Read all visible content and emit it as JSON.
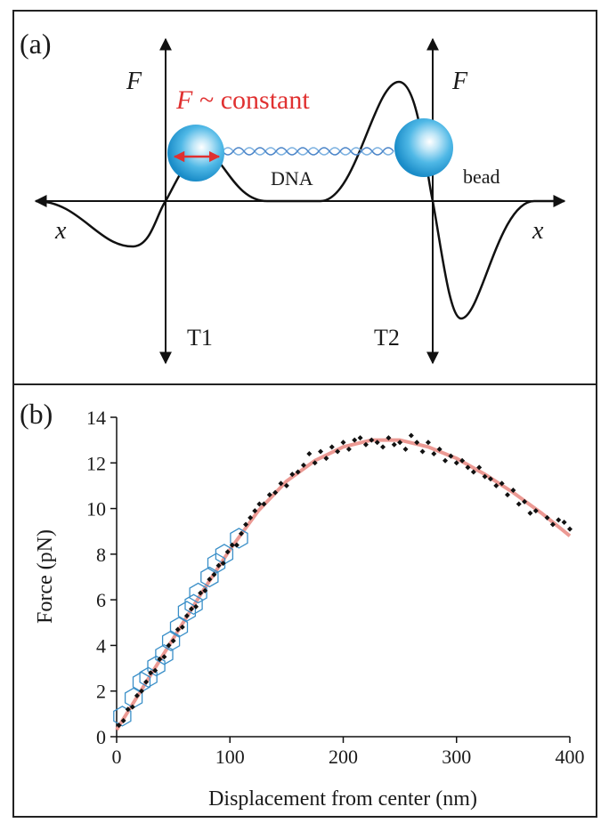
{
  "diagram": {
    "label": "(a)",
    "force_left": "F",
    "force_right": "F",
    "annotation": {
      "symbol": "F",
      "text": "~ constant"
    },
    "dna": "DNA",
    "bead": "bead",
    "axis_left": "x",
    "axis_right": "x",
    "trap_left": "T1",
    "trap_right": "T2"
  },
  "chart_data": {
    "type": "scatter",
    "label": "(b)",
    "xlabel": "Displacement from center (nm)",
    "ylabel": "Force (pN)",
    "xlim": [
      0,
      400
    ],
    "ylim": [
      0,
      14
    ],
    "xticks": [
      0,
      100,
      200,
      300,
      400
    ],
    "yticks": [
      0,
      2,
      4,
      6,
      8,
      10,
      12,
      14
    ],
    "series": [
      {
        "type": "line",
        "color": "#ec9a94",
        "x": [
          0,
          25,
          50,
          75,
          100,
          125,
          150,
          175,
          200,
          225,
          250,
          275,
          300,
          325,
          350,
          375,
          400
        ],
        "values": [
          0.3,
          2.3,
          4.3,
          6.3,
          8.2,
          9.9,
          11.2,
          12.1,
          12.7,
          13.0,
          13.0,
          12.7,
          12.2,
          11.5,
          10.7,
          9.8,
          8.8
        ]
      },
      {
        "type": "scatter",
        "marker": "hexagon",
        "color": "#3a8fc8",
        "x": [
          5,
          15,
          22,
          28,
          35,
          42,
          48,
          55,
          62,
          68,
          72,
          82,
          88,
          95,
          108
        ],
        "values": [
          0.9,
          1.7,
          2.4,
          2.6,
          3.1,
          3.6,
          4.2,
          4.8,
          5.5,
          5.8,
          6.3,
          7.0,
          7.6,
          8.0,
          8.7
        ]
      },
      {
        "type": "scatter",
        "marker": "diamond",
        "color": "#111111",
        "x": [
          2,
          6,
          10,
          14,
          18,
          22,
          26,
          30,
          34,
          38,
          42,
          46,
          50,
          54,
          58,
          62,
          66,
          70,
          74,
          78,
          82,
          86,
          90,
          94,
          98,
          102,
          106,
          110,
          114,
          118,
          122,
          126,
          130,
          135,
          140,
          145,
          150,
          155,
          160,
          165,
          170,
          175,
          180,
          185,
          190,
          195,
          200,
          205,
          210,
          215,
          220,
          225,
          230,
          235,
          240,
          245,
          250,
          255,
          260,
          265,
          270,
          275,
          280,
          285,
          290,
          295,
          300,
          305,
          310,
          315,
          320,
          325,
          330,
          335,
          340,
          345,
          350,
          355,
          360,
          365,
          370,
          380,
          385,
          390,
          395,
          400
        ],
        "values": [
          0.5,
          0.7,
          1.2,
          1.3,
          1.8,
          2.0,
          2.4,
          2.8,
          2.9,
          3.4,
          3.5,
          4.0,
          4.2,
          4.7,
          4.8,
          5.3,
          5.6,
          5.7,
          6.3,
          6.4,
          6.9,
          7.1,
          7.5,
          7.6,
          8.1,
          8.4,
          8.4,
          8.9,
          9.3,
          9.6,
          9.9,
          10.2,
          10.2,
          10.6,
          10.7,
          11.1,
          11.0,
          11.5,
          11.6,
          11.9,
          12.4,
          12.0,
          12.5,
          12.2,
          12.7,
          12.5,
          12.9,
          12.6,
          13.0,
          13.1,
          12.8,
          13.0,
          12.9,
          12.7,
          13.1,
          12.8,
          12.9,
          12.6,
          13.2,
          12.9,
          12.5,
          12.9,
          12.4,
          12.6,
          12.1,
          12.3,
          12.0,
          12.1,
          11.8,
          11.6,
          11.8,
          11.4,
          11.3,
          11.0,
          11.1,
          10.6,
          10.8,
          10.2,
          10.3,
          9.8,
          9.9,
          9.6,
          9.3,
          9.5,
          9.4,
          9.1
        ]
      }
    ]
  }
}
